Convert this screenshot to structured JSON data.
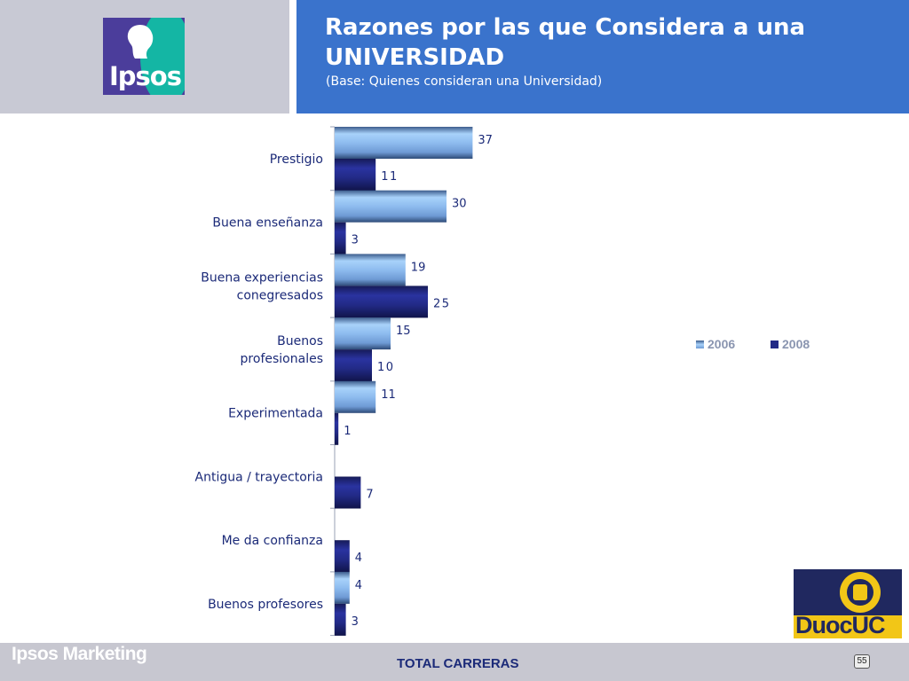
{
  "header": {
    "brand_logo_text": "Ipsos",
    "title": "Razones por las que Considera a una UNIVERSIDAD",
    "subtitle": "(Base: Quienes consideran una Universidad)"
  },
  "legend": {
    "placement": "right",
    "items": [
      {
        "label": "2006",
        "color": "#8cbcf0"
      },
      {
        "label": "2008",
        "color": "#222a86"
      }
    ]
  },
  "chart_data": {
    "type": "bar",
    "orientation": "horizontal",
    "categories": [
      [
        "Prestigio"
      ],
      [
        "Buena enseñanza"
      ],
      [
        "Buena experiencias",
        "conegresados"
      ],
      [
        "Buenos",
        "profesionales"
      ],
      [
        "Experimentada"
      ],
      [
        "Antigua / trayectoria"
      ],
      [
        "Me da confianza"
      ],
      [
        "Buenos profesores"
      ]
    ],
    "series": [
      {
        "name": "2006",
        "values": [
          37,
          30,
          19,
          15,
          11,
          null,
          null,
          4
        ]
      },
      {
        "name": "2008",
        "values": [
          11,
          3,
          25,
          10,
          1,
          7,
          4,
          3
        ]
      }
    ],
    "xlim": [
      0,
      100
    ],
    "grid": false
  },
  "footer": {
    "brand": "Ipsos Marketing",
    "center_text": "TOTAL CARRERAS",
    "page_number": "55",
    "partner_logo_text": "DuocUC"
  }
}
